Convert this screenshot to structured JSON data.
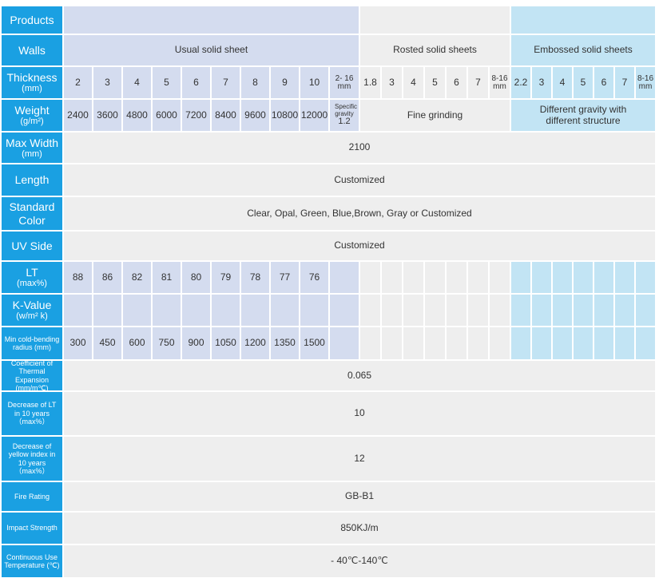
{
  "labels": {
    "products": "Products",
    "walls": "Walls",
    "thickness": "Thickness",
    "thickness_unit": "(mm)",
    "weight": "Weight",
    "weight_unit": "(g/m²)",
    "max_width": "Max Width",
    "max_width_unit": "(mm)",
    "length": "Length",
    "standard_color": "Standard Color",
    "uv_side": "UV Side",
    "lt": "LT",
    "lt_unit": "(max%)",
    "k_value": "K-Value",
    "k_value_unit": "(w/m² k)",
    "min_bending": "Min cold-bending radius (mm)",
    "coef": "Coefficient of Thermal Expansion (mm/m℃)",
    "decrease_lt": "Decrease of LT in 10 years（max%）",
    "decrease_yellow": "Decrease of yellow index in 10 years（max%）",
    "fire": "Fire Rating",
    "impact": "Impact Strength",
    "continuous": "Continuous Use Temperature (℃)"
  },
  "walls": {
    "usual": "Usual solid sheet",
    "rosted": "Rosted solid sheets",
    "embossed": "Embossed solid sheets"
  },
  "usual": {
    "thickness": [
      "2",
      "3",
      "4",
      "5",
      "6",
      "7",
      "8",
      "9",
      "10",
      "2- 16 mm"
    ],
    "weight": [
      "2400",
      "3600",
      "4800",
      "6000",
      "7200",
      "8400",
      "9600",
      "10800",
      "12000"
    ],
    "weight_extra_a": "Specific gravity",
    "weight_extra_b": "1.2",
    "lt": [
      "88",
      "86",
      "82",
      "81",
      "80",
      "79",
      "78",
      "77",
      "76"
    ],
    "min_bending": [
      "300",
      "450",
      "600",
      "750",
      "900",
      "1050",
      "1200",
      "1350",
      "1500"
    ]
  },
  "rosted": {
    "thickness": [
      "1.8",
      "3",
      "4",
      "5",
      "6",
      "7",
      "8-16 mm"
    ],
    "weight": "Fine grinding"
  },
  "embossed": {
    "thickness": [
      "2.2",
      "3",
      "4",
      "5",
      "6",
      "7",
      "8-16 mm"
    ],
    "weight": "Different gravity with different structure"
  },
  "common": {
    "max_width": "2100",
    "length": "Customized",
    "standard_color": "Clear, Opal, Green, Blue,Brown, Gray or Customized",
    "uv_side": "Customized",
    "coef": "0.065",
    "decrease_lt": "10",
    "decrease_yellow": "12",
    "fire": "GB-B1",
    "impact": "850KJ/m",
    "continuous": "- 40℃-140℃"
  },
  "colors": {
    "label": "#1aa0e2",
    "usual": "#d4dcef",
    "rosted": "#eeeeee",
    "embossed": "#c2e4f4"
  }
}
